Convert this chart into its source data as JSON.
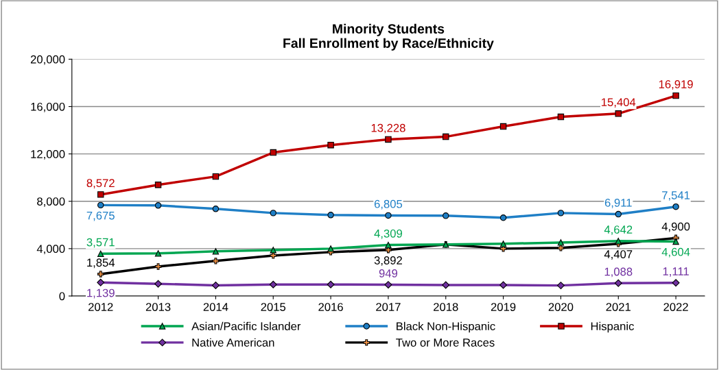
{
  "chart_data": {
    "type": "line",
    "title": "Minority Students\nFall Enrollment by Race/Ethnicity",
    "categories": [
      "2012",
      "2013",
      "2014",
      "2015",
      "2016",
      "2017",
      "2018",
      "2019",
      "2020",
      "2021",
      "2022"
    ],
    "ylim": [
      0,
      20000
    ],
    "yticks": [
      {
        "value": 0,
        "label": "0"
      },
      {
        "value": 4000,
        "label": "4,000"
      },
      {
        "value": 8000,
        "label": "8,000"
      },
      {
        "value": 12000,
        "label": "12,000"
      },
      {
        "value": 16000,
        "label": "16,000"
      },
      {
        "value": 20000,
        "label": "20,000"
      }
    ],
    "grid": "y",
    "legend": "bottom",
    "series": [
      {
        "name": "Asian/Pacific Islander",
        "color": "#00a651",
        "marker": "triangle",
        "values": [
          3571,
          3600,
          3770,
          3880,
          4000,
          4309,
          4350,
          4410,
          4520,
          4642,
          4604
        ],
        "value_labels": [
          "3,571",
          null,
          null,
          null,
          null,
          "4,309",
          null,
          null,
          null,
          "4,642",
          "4,604"
        ]
      },
      {
        "name": "Black Non-Hispanic",
        "color": "#1f7fc6",
        "marker": "circle",
        "values": [
          7675,
          7650,
          7360,
          7010,
          6840,
          6805,
          6780,
          6610,
          7010,
          6911,
          7541
        ],
        "value_labels": [
          "7,675",
          null,
          null,
          null,
          null,
          "6,805",
          null,
          null,
          null,
          "6,911",
          "7,541"
        ]
      },
      {
        "name": "Hispanic",
        "color": "#c00000",
        "marker": "square",
        "values": [
          8572,
          9390,
          10090,
          12120,
          12750,
          13228,
          13450,
          14320,
          15130,
          15404,
          16919
        ],
        "value_labels": [
          "8,572",
          null,
          null,
          null,
          null,
          "13,228",
          null,
          null,
          null,
          "15,404",
          "16,919"
        ]
      },
      {
        "name": "Native American",
        "color": "#7030a0",
        "marker": "diamond",
        "values": [
          1139,
          1030,
          900,
          970,
          970,
          949,
          930,
          930,
          890,
          1088,
          1111
        ],
        "value_labels": [
          "1,139",
          null,
          null,
          null,
          null,
          "949",
          null,
          null,
          null,
          "1,088",
          "1,111"
        ]
      },
      {
        "name": "Two or More Races",
        "color": "#000000",
        "marker": "cross",
        "values": [
          1854,
          2490,
          2960,
          3420,
          3710,
          3892,
          4350,
          4000,
          4060,
          4407,
          4900
        ],
        "value_labels": [
          "1,854",
          null,
          null,
          null,
          null,
          "3,892",
          null,
          null,
          null,
          "4,407",
          "4,900"
        ]
      }
    ]
  }
}
